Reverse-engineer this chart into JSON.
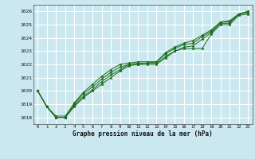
{
  "xlabel": "Graphe pression niveau de la mer (hPa)",
  "bg_color": "#cbe8f0",
  "grid_color": "#ffffff",
  "line_color": "#1a6b1a",
  "marker_color": "#1a6b1a",
  "ylim": [
    1017.5,
    1026.5
  ],
  "xlim": [
    -0.5,
    23.5
  ],
  "yticks": [
    1018,
    1019,
    1020,
    1021,
    1022,
    1023,
    1024,
    1025,
    1026
  ],
  "xticks": [
    0,
    1,
    2,
    3,
    4,
    5,
    6,
    7,
    8,
    9,
    10,
    11,
    12,
    13,
    14,
    15,
    16,
    17,
    18,
    19,
    20,
    21,
    22,
    23
  ],
  "series": [
    [
      1020.0,
      1018.8,
      1018.0,
      1018.0,
      1018.8,
      1019.5,
      1020.0,
      1020.5,
      1021.0,
      1021.5,
      1021.9,
      1022.0,
      1022.0,
      1022.0,
      1022.5,
      1023.0,
      1023.2,
      1023.2,
      1023.2,
      1024.3,
      1025.0,
      1025.0,
      1025.7,
      1025.8
    ],
    [
      1020.0,
      1018.8,
      1018.0,
      1018.0,
      1018.9,
      1019.6,
      1020.1,
      1020.7,
      1021.2,
      1021.6,
      1022.0,
      1022.1,
      1022.1,
      1022.1,
      1022.6,
      1023.0,
      1023.3,
      1023.4,
      1023.9,
      1024.4,
      1025.1,
      1025.1,
      1025.8,
      1025.9
    ],
    [
      1020.0,
      1018.8,
      1018.1,
      1018.1,
      1019.0,
      1019.8,
      1020.3,
      1020.9,
      1021.4,
      1021.8,
      1022.0,
      1022.0,
      1022.1,
      1022.2,
      1022.8,
      1023.2,
      1023.5,
      1023.6,
      1024.1,
      1024.5,
      1025.2,
      1025.2,
      1025.8,
      1026.0
    ],
    [
      1020.0,
      1018.8,
      1018.0,
      1018.0,
      1019.1,
      1019.9,
      1020.5,
      1021.1,
      1021.6,
      1022.0,
      1022.1,
      1022.2,
      1022.2,
      1022.2,
      1022.9,
      1023.3,
      1023.6,
      1023.8,
      1024.2,
      1024.6,
      1025.2,
      1025.3,
      1025.8,
      1026.0
    ]
  ]
}
